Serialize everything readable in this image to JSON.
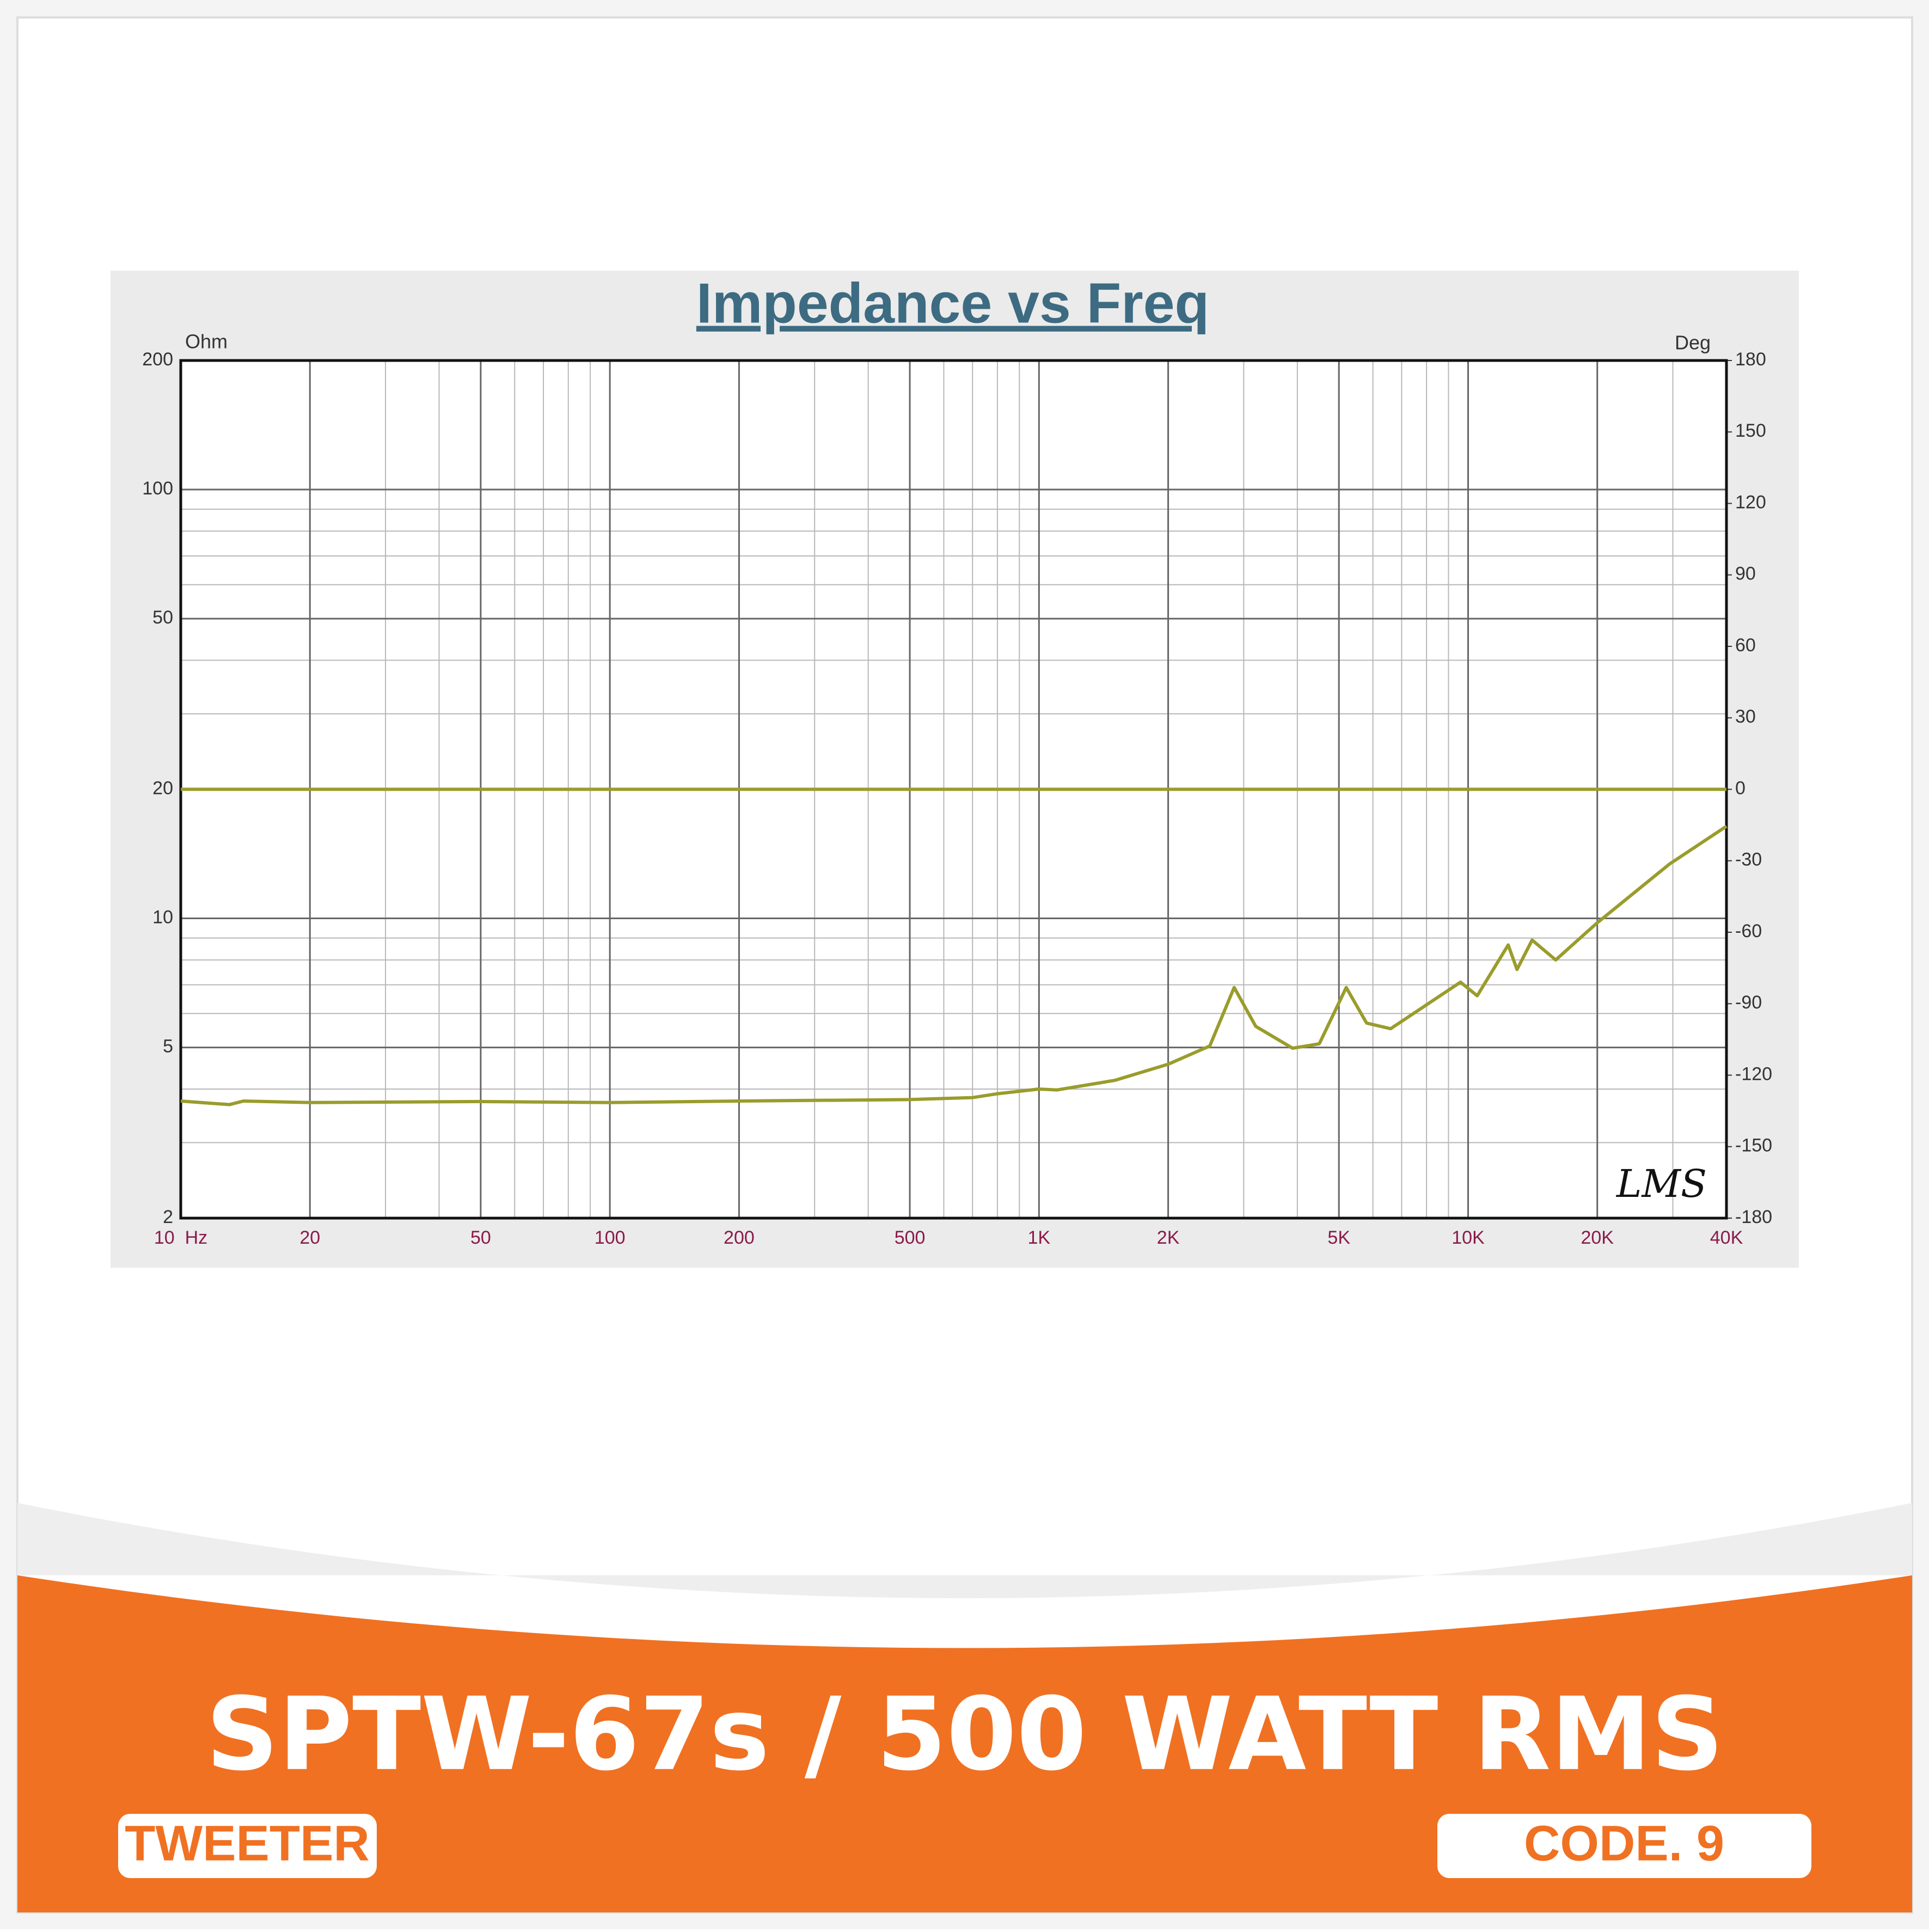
{
  "chart_data": {
    "type": "line",
    "title": "Impedance vs Freq",
    "ylabel": "Ohm",
    "y2label": "Deg",
    "annotation": "LMS",
    "xscale": "log",
    "yscale": "log",
    "grid": true,
    "minor_grid": true,
    "xlim": [
      10,
      40000
    ],
    "xticks": [
      {
        "value": 10,
        "label": "10  Hz"
      },
      20,
      50,
      100,
      200,
      500,
      {
        "value": 1000,
        "label": "1K"
      },
      {
        "value": 2000,
        "label": "2K"
      },
      {
        "value": 5000,
        "label": "5K"
      },
      {
        "value": 10000,
        "label": "10K"
      },
      {
        "value": 20000,
        "label": "20K"
      },
      {
        "value": 40000,
        "label": "40K"
      }
    ],
    "ylim": [
      2,
      200
    ],
    "yticks": [
      2,
      5,
      10,
      20,
      50,
      100,
      200
    ],
    "y2lim": [
      -180,
      180
    ],
    "y2ticks": [
      -180,
      -150,
      -120,
      -90,
      -60,
      -30,
      0,
      30,
      60,
      90,
      120,
      150,
      180
    ],
    "series": [
      {
        "color": "#9a9c2c",
        "x": [
          10,
          12,
          13,
          14,
          20,
          50,
          100,
          200,
          500,
          700,
          800,
          1000,
          1100,
          1500,
          2000,
          2500,
          2850,
          3200,
          3900,
          4500,
          5200,
          5800,
          6600,
          9600,
          10500,
          12400,
          13000,
          14100,
          16000,
          20000,
          29500,
          40000
        ],
        "values": [
          3.75,
          3.7,
          3.68,
          3.75,
          3.72,
          3.74,
          3.72,
          3.75,
          3.78,
          3.82,
          3.9,
          4.0,
          3.98,
          4.19,
          4.57,
          5.04,
          6.9,
          5.6,
          4.98,
          5.1,
          6.9,
          5.7,
          5.53,
          7.1,
          6.6,
          8.67,
          7.6,
          8.9,
          8.0,
          9.77,
          13.4,
          16.4
        ]
      },
      {
        "color": "#9a9c2c",
        "axis": "y2",
        "x": [
          10,
          40000
        ],
        "values": [
          0,
          0
        ]
      }
    ]
  },
  "banner": {
    "title": "SPTW-67s / 500 WATT RMS",
    "left_tag": "TWEETER",
    "right_tag": "CODE. 9"
  }
}
